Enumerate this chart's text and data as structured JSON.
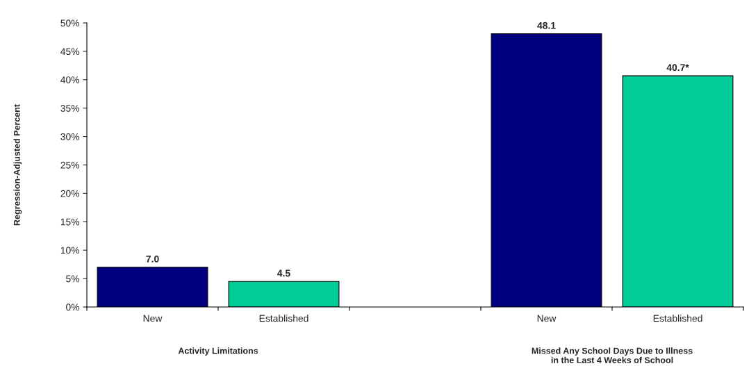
{
  "chart_data": {
    "type": "bar",
    "categories": [
      "New",
      "Established",
      null,
      "New",
      "Established"
    ],
    "values": [
      7.0,
      4.5,
      null,
      48.1,
      40.7
    ],
    "colors": [
      "#000080",
      "#00cc99",
      null,
      "#000080",
      "#00cc99"
    ],
    "value_labels": [
      "7.0",
      "4.5",
      null,
      "48.1",
      "40.7*"
    ],
    "ylabel": "Regression-Adjusted Percent",
    "ylim": [
      0,
      50
    ],
    "yticks": [
      {
        "value": 0,
        "label": "0%"
      },
      {
        "value": 5,
        "label": "5%"
      },
      {
        "value": 10,
        "label": "10%"
      },
      {
        "value": 15,
        "label": "15%"
      },
      {
        "value": 20,
        "label": "20%"
      },
      {
        "value": 25,
        "label": "25%"
      },
      {
        "value": 30,
        "label": "30%"
      },
      {
        "value": 35,
        "label": "35%"
      },
      {
        "value": 40,
        "label": "40%"
      },
      {
        "value": 45,
        "label": "45%"
      },
      {
        "value": 50,
        "label": "50%"
      }
    ],
    "annotations": [
      "Activity Limitations",
      "Missed Any School Days Due to Illness\nin the Last 4 Weeks of School"
    ],
    "grid": false,
    "legend": false
  }
}
